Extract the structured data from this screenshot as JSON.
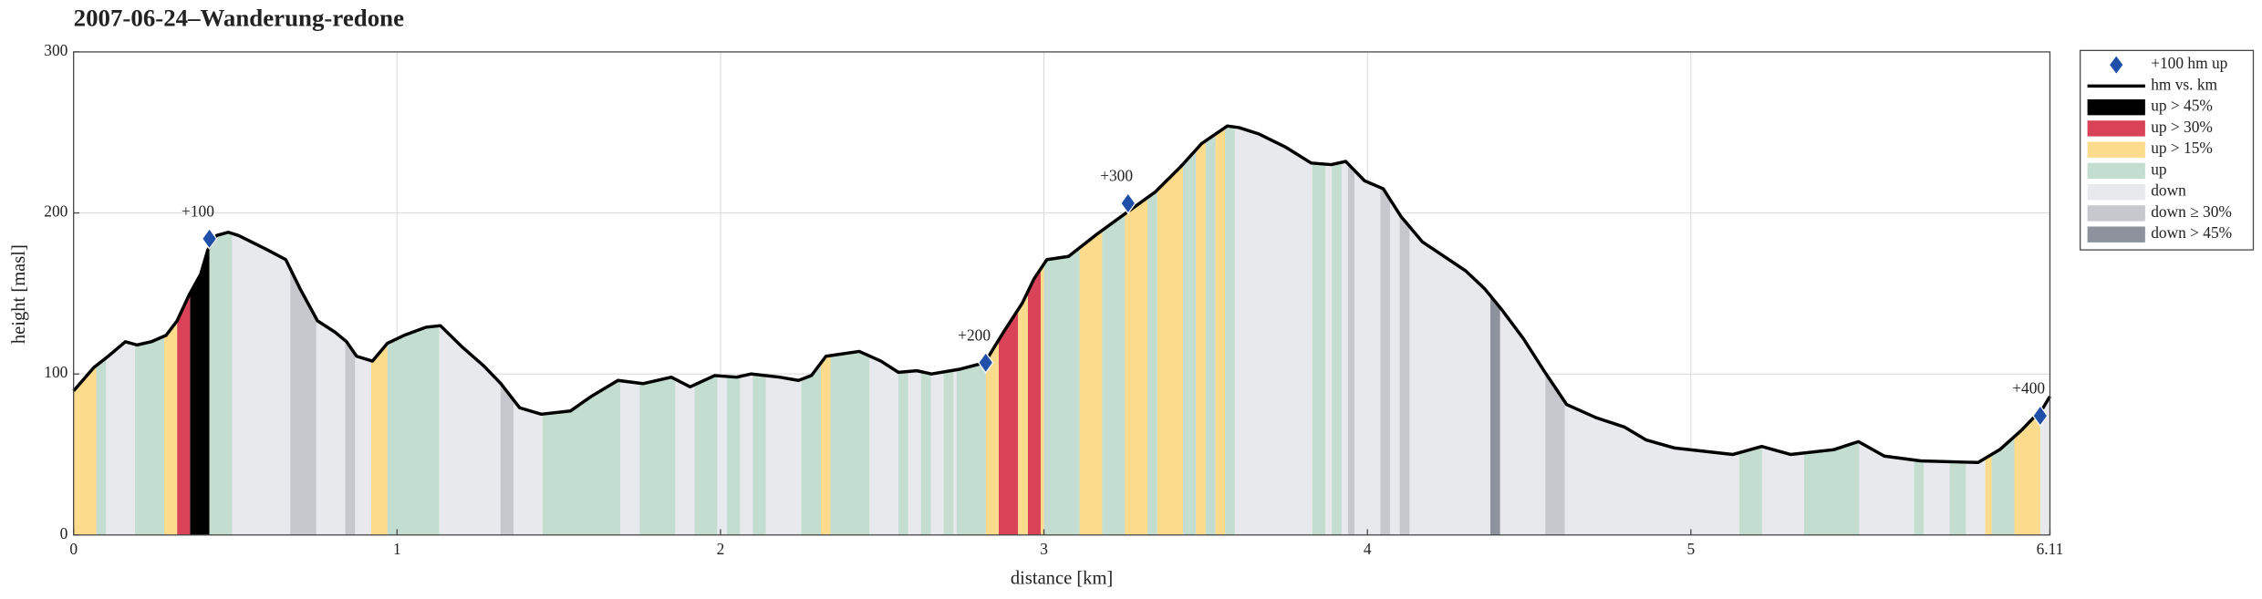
{
  "chart_data": {
    "type": "area",
    "title": "2007-06-24–Wanderung-redone",
    "xlabel": "distance [km]",
    "ylabel": "height [masl]",
    "xlim": [
      0,
      6.11
    ],
    "ylim": [
      0,
      300
    ],
    "xticks": [
      0,
      1,
      2,
      3,
      4,
      5,
      6.11
    ],
    "yticks": [
      0,
      100,
      200,
      300
    ],
    "grid": true,
    "legend": "outside-right",
    "line": {
      "name": "hm vs. km",
      "color": "#000000"
    },
    "x": [
      0,
      0.0625,
      0.107,
      0.16,
      0.196,
      0.24,
      0.286,
      0.32,
      0.357,
      0.393,
      0.415,
      0.442,
      0.478,
      0.51,
      0.6,
      0.656,
      0.7,
      0.754,
      0.808,
      0.844,
      0.875,
      0.924,
      0.97,
      1.022,
      1.089,
      1.134,
      1.2,
      1.268,
      1.321,
      1.379,
      1.446,
      1.536,
      1.6,
      1.683,
      1.76,
      1.848,
      1.906,
      1.982,
      2.05,
      2.094,
      2.183,
      2.241,
      2.281,
      2.326,
      2.429,
      2.496,
      2.55,
      2.607,
      2.652,
      2.741,
      2.817,
      2.875,
      2.933,
      2.969,
      3.009,
      3.076,
      3.165,
      3.254,
      3.344,
      3.424,
      3.487,
      3.567,
      3.603,
      3.665,
      3.746,
      3.826,
      3.888,
      3.933,
      3.991,
      4.049,
      4.103,
      4.17,
      4.237,
      4.304,
      4.362,
      4.415,
      4.482,
      4.549,
      4.616,
      4.705,
      4.795,
      4.862,
      4.95,
      5.13,
      5.219,
      5.308,
      5.442,
      5.518,
      5.598,
      5.71,
      5.888,
      5.955,
      6.022,
      6.089,
      6.11
    ],
    "y": [
      89.5,
      104,
      111,
      120,
      118,
      120,
      124,
      133,
      149,
      162,
      177,
      186,
      188,
      186,
      177,
      171,
      153,
      133,
      126,
      120,
      111,
      108,
      119,
      124,
      129,
      130,
      117,
      105,
      94,
      79,
      75,
      77,
      86,
      96,
      94,
      98,
      92,
      99,
      98,
      100,
      98,
      96,
      99,
      111,
      114,
      108,
      101,
      102,
      100,
      103,
      107,
      126,
      144,
      159,
      171,
      173,
      187,
      200,
      213,
      229,
      243,
      254,
      253,
      249,
      241,
      231,
      230,
      232,
      220,
      215,
      198,
      182,
      173,
      164,
      153,
      140,
      122,
      101,
      81,
      73,
      67,
      59,
      54,
      50,
      55,
      50,
      53,
      58,
      49,
      46,
      45,
      53,
      65,
      79,
      86
    ],
    "markers": {
      "name": "+100 hm up",
      "color": "#1f4fa8",
      "x": [
        0.42,
        2.82,
        3.26,
        6.08
      ],
      "y": [
        184,
        107,
        206,
        74
      ],
      "labels": [
        "+100",
        "+200",
        "+300",
        "+400"
      ]
    },
    "classes": [
      {
        "name": "up > 45%",
        "color": "#000000",
        "bands": [
          [
            0.36,
            0.42
          ]
        ]
      },
      {
        "name": "up > 30%",
        "color": "#d94357",
        "bands": [
          [
            0.32,
            0.36
          ],
          [
            2.86,
            2.92
          ],
          [
            2.95,
            2.99
          ]
        ]
      },
      {
        "name": "up > 15%",
        "color": "#fddb8c",
        "bands": [
          [
            0,
            0.07
          ],
          [
            0.28,
            0.32
          ],
          [
            0.92,
            0.97
          ],
          [
            2.31,
            2.34
          ],
          [
            2.82,
            2.86
          ],
          [
            2.92,
            2.95
          ],
          [
            2.99,
            3.0
          ],
          [
            3.11,
            3.18
          ],
          [
            3.25,
            3.32
          ],
          [
            3.35,
            3.43
          ],
          [
            3.47,
            3.5
          ],
          [
            3.53,
            3.56
          ],
          [
            5.91,
            5.93
          ],
          [
            6.0,
            6.08
          ]
        ]
      },
      {
        "name": "up",
        "color": "#c3ddd0",
        "bands": [
          [
            0.07,
            0.1
          ],
          [
            0.19,
            0.28
          ],
          [
            0.42,
            0.49
          ],
          [
            0.97,
            1.13
          ],
          [
            1.45,
            1.69
          ],
          [
            1.75,
            1.86
          ],
          [
            1.92,
            1.99
          ],
          [
            2.02,
            2.06
          ],
          [
            2.1,
            2.14
          ],
          [
            2.25,
            2.31
          ],
          [
            2.34,
            2.46
          ],
          [
            2.55,
            2.58
          ],
          [
            2.62,
            2.65
          ],
          [
            2.69,
            2.72
          ],
          [
            2.73,
            2.82
          ],
          [
            3.0,
            3.11
          ],
          [
            3.18,
            3.25
          ],
          [
            3.32,
            3.35
          ],
          [
            3.43,
            3.47
          ],
          [
            3.5,
            3.53
          ],
          [
            3.56,
            3.59
          ],
          [
            3.83,
            3.87
          ],
          [
            3.89,
            3.92
          ],
          [
            5.15,
            5.22
          ],
          [
            5.35,
            5.52
          ],
          [
            5.69,
            5.72
          ],
          [
            5.8,
            5.85
          ],
          [
            5.93,
            6.0
          ]
        ]
      },
      {
        "name": "down",
        "color": "#e8e9ec"
      },
      {
        "name": "down ≥ 30%",
        "color": "#c7c8cd",
        "bands": [
          [
            0.67,
            0.75
          ],
          [
            0.84,
            0.87
          ],
          [
            1.32,
            1.36
          ],
          [
            3.94,
            3.96
          ],
          [
            4.04,
            4.07
          ],
          [
            4.1,
            4.13
          ],
          [
            4.55,
            4.61
          ]
        ]
      },
      {
        "name": "down > 45%",
        "color": "#8e929c",
        "bands": [
          [
            4.38,
            4.41
          ]
        ]
      }
    ]
  }
}
